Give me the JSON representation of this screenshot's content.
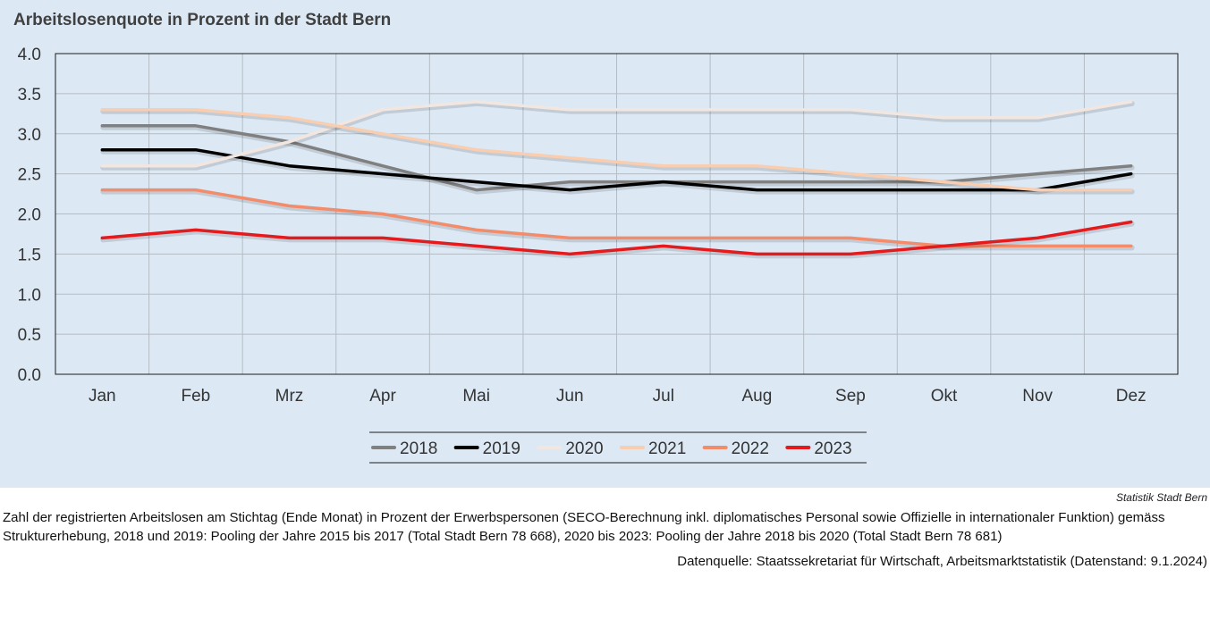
{
  "header": {
    "title": "Arbeitslosenquote in Prozent in der Stadt Bern"
  },
  "footer": {
    "organization": "Statistik Stadt Bern",
    "note": "Zahl der registrierten Arbeitslosen am Stichtag (Ende Monat) in Prozent der Erwerbspersonen (SECO-Berechnung inkl. diplomatisches Personal sowie Offizielle in internationaler Funktion) gemäss Strukturerhebung, 2018 und 2019: Pooling der Jahre 2015 bis 2017 (Total Stadt Bern 78 668), 2020 bis 2023: Pooling der Jahre 2018 bis 2020 (Total Stadt Bern 78 681)",
    "source": "Datenquelle: Staatssekretariat für Wirtschaft, Arbeitsmarktstatistik (Datenstand: 9.1.2024)"
  },
  "chart_data": {
    "type": "line",
    "title": "Arbeitslosenquote in Prozent in der Stadt Bern",
    "categories": [
      "Jan",
      "Feb",
      "Mrz",
      "Apr",
      "Mai",
      "Jun",
      "Jul",
      "Aug",
      "Sep",
      "Okt",
      "Nov",
      "Dez"
    ],
    "y_ticks": [
      "0.0",
      "0.5",
      "1.0",
      "1.5",
      "2.0",
      "2.5",
      "3.0",
      "3.5",
      "4.0"
    ],
    "ylim": [
      0,
      4
    ],
    "grid": true,
    "legend_position": "bottom",
    "series": [
      {
        "name": "2018",
        "color": "#808080",
        "values": [
          3.1,
          3.1,
          2.9,
          2.6,
          2.3,
          2.4,
          2.4,
          2.4,
          2.4,
          2.4,
          2.5,
          2.6
        ]
      },
      {
        "name": "2019",
        "color": "#000000",
        "values": [
          2.8,
          2.8,
          2.6,
          2.5,
          2.4,
          2.3,
          2.4,
          2.3,
          2.3,
          2.3,
          2.3,
          2.5
        ]
      },
      {
        "name": "2020",
        "color": "#f2e6e1",
        "values": [
          2.6,
          2.6,
          2.9,
          3.3,
          3.4,
          3.3,
          3.3,
          3.3,
          3.3,
          3.2,
          3.2,
          3.4
        ]
      },
      {
        "name": "2021",
        "color": "#f9cdb0",
        "values": [
          3.3,
          3.3,
          3.2,
          3.0,
          2.8,
          2.7,
          2.6,
          2.6,
          2.5,
          2.4,
          2.3,
          2.3
        ]
      },
      {
        "name": "2022",
        "color": "#f28c6b",
        "values": [
          2.3,
          2.3,
          2.1,
          2.0,
          1.8,
          1.7,
          1.7,
          1.7,
          1.7,
          1.6,
          1.6,
          1.6
        ]
      },
      {
        "name": "2023",
        "color": "#e41a1c",
        "values": [
          1.7,
          1.8,
          1.7,
          1.7,
          1.6,
          1.5,
          1.6,
          1.5,
          1.5,
          1.6,
          1.7,
          1.9
        ]
      }
    ]
  }
}
